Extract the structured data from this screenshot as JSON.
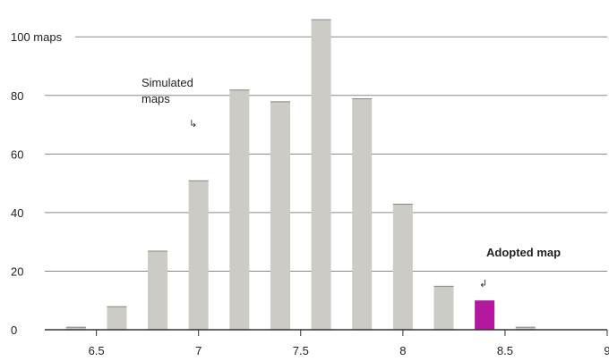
{
  "chart_data": {
    "type": "bar",
    "x": [
      6.4,
      6.6,
      6.8,
      7.0,
      7.2,
      7.4,
      7.6,
      7.8,
      8.0,
      8.2,
      8.4,
      8.6,
      8.8
    ],
    "series": [
      {
        "values": [
          1,
          8,
          27,
          51,
          82,
          78,
          106,
          79,
          43,
          15,
          0,
          1,
          0
        ]
      },
      {
        "values": [
          0,
          0,
          0,
          0,
          0,
          0,
          0,
          0,
          0,
          0,
          10,
          0,
          0
        ]
      }
    ],
    "xticks": [
      6.5,
      7,
      7.5,
      8,
      8.5,
      9
    ],
    "xtick_labels": [
      "6.5",
      "7",
      "7.5",
      "8",
      "8.5",
      "9"
    ],
    "yticks": [
      0,
      20,
      40,
      60,
      80,
      100
    ],
    "ytick_labels": [
      "0",
      "20",
      "40",
      "60",
      "80",
      "100 maps"
    ],
    "xlim": [
      6.3,
      9.0
    ],
    "ylim": [
      0,
      108
    ],
    "grid": true,
    "annotations": {
      "simulated_line1": "Simulated",
      "simulated_line2": "maps",
      "simulated_arrow": "↳",
      "adopted": "Adopted map",
      "adopted_arrow": "↲"
    },
    "colors": {
      "simulated_bar": "#cccbc6",
      "adopted_bar": "#b5179e",
      "grid": "#888888",
      "axis": "#333333"
    }
  }
}
